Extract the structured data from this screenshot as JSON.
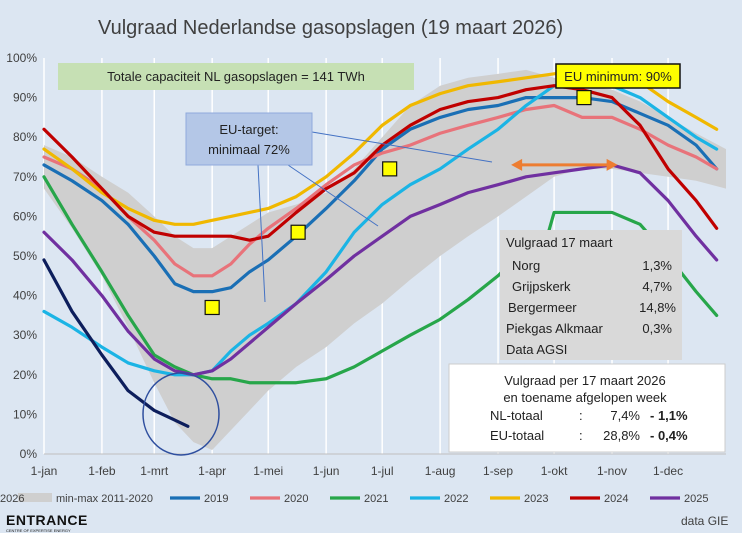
{
  "chart_data": {
    "type": "line",
    "title": "Vulgraad Nederlandse gasopslagen (19 maart 2026)",
    "xlabel": "",
    "ylabel": "",
    "x_ticks": [
      "1-jan",
      "1-feb",
      "1-mrt",
      "1-apr",
      "1-mei",
      "1-jun",
      "1-jul",
      "1-aug",
      "1-sep",
      "1-okt",
      "1-nov",
      "1-dec"
    ],
    "x_tick_days": [
      0,
      31,
      59,
      90,
      120,
      151,
      181,
      212,
      243,
      273,
      304,
      334
    ],
    "x_range_days": [
      0,
      365
    ],
    "y_ticks": [
      "0%",
      "10%",
      "20%",
      "30%",
      "40%",
      "50%",
      "60%",
      "70%",
      "80%",
      "90%",
      "100%"
    ],
    "ylim": [
      0,
      100
    ],
    "grid": "vertical",
    "band": {
      "name": "min-max 2011-2020",
      "color": "#cfcfcf",
      "x": [
        0,
        15,
        31,
        45,
        59,
        70,
        80,
        90,
        100,
        110,
        120,
        135,
        151,
        166,
        181,
        196,
        212,
        227,
        243,
        258,
        273,
        288,
        304,
        319,
        334,
        349,
        365
      ],
      "upper": [
        78,
        75,
        70,
        66,
        60,
        55,
        52,
        52,
        55,
        58,
        61,
        63,
        66,
        72,
        80,
        88,
        93,
        95,
        96,
        97,
        95,
        93,
        92,
        89,
        85,
        81,
        77
      ],
      "lower": [
        67,
        57,
        45,
        32,
        18,
        8,
        3,
        1,
        6,
        11,
        16,
        22,
        27,
        33,
        38,
        44,
        50,
        55,
        60,
        65,
        70,
        72,
        72,
        71,
        70,
        69,
        67
      ]
    },
    "series": [
      {
        "name": "2019",
        "color": "#1a6fb5",
        "x": [
          0,
          15,
          31,
          45,
          59,
          70,
          80,
          90,
          100,
          110,
          120,
          135,
          151,
          166,
          181,
          196,
          212,
          227,
          243,
          258,
          273,
          288,
          304,
          319,
          334,
          349,
          360
        ],
        "values": [
          73,
          69,
          64,
          58,
          50,
          43,
          41,
          41,
          42,
          46,
          49,
          55,
          62,
          69,
          77,
          82,
          85,
          87,
          88,
          90,
          90,
          90,
          89,
          86,
          83,
          78,
          72
        ]
      },
      {
        "name": "2020",
        "color": "#e8737a",
        "x": [
          0,
          15,
          31,
          45,
          59,
          70,
          80,
          90,
          100,
          110,
          120,
          135,
          151,
          166,
          181,
          196,
          212,
          227,
          243,
          258,
          273,
          288,
          304,
          319,
          334,
          349,
          360
        ],
        "values": [
          75,
          72,
          67,
          60,
          54,
          48,
          45,
          45,
          48,
          53,
          57,
          62,
          68,
          73,
          76,
          78,
          81,
          83,
          85,
          87,
          88,
          85,
          85,
          82,
          78,
          75,
          72
        ]
      },
      {
        "name": "2021",
        "color": "#27a64a",
        "x": [
          0,
          15,
          31,
          45,
          59,
          70,
          80,
          90,
          100,
          110,
          120,
          135,
          151,
          166,
          181,
          196,
          212,
          227,
          243,
          258,
          270,
          273,
          288,
          304,
          319,
          334,
          349,
          360
        ],
        "values": [
          70,
          58,
          46,
          35,
          25,
          22,
          20,
          19,
          19,
          18,
          18,
          18,
          19,
          22,
          26,
          30,
          34,
          39,
          45,
          52,
          56,
          61,
          61,
          61,
          58,
          50,
          41,
          35
        ]
      },
      {
        "name": "2022",
        "color": "#1bb4e5",
        "x": [
          0,
          15,
          31,
          45,
          59,
          70,
          80,
          90,
          100,
          110,
          120,
          135,
          151,
          166,
          181,
          196,
          212,
          227,
          243,
          258,
          273,
          288,
          304,
          319,
          334,
          349,
          360
        ],
        "values": [
          36,
          32,
          27,
          23,
          21,
          20,
          20,
          21,
          26,
          30,
          33,
          38,
          46,
          56,
          63,
          68,
          72,
          77,
          82,
          88,
          93,
          93,
          93,
          90,
          85,
          80,
          77
        ]
      },
      {
        "name": "2023",
        "color": "#f0b800",
        "x": [
          0,
          15,
          31,
          45,
          59,
          70,
          80,
          90,
          100,
          110,
          120,
          135,
          151,
          166,
          181,
          196,
          212,
          227,
          243,
          258,
          273,
          288,
          304,
          319,
          334,
          349,
          360
        ],
        "values": [
          77,
          72,
          66,
          62,
          59,
          58,
          58,
          59,
          60,
          61,
          62,
          65,
          70,
          76,
          83,
          88,
          91,
          93,
          94,
          95,
          96,
          97,
          96,
          94,
          89,
          85,
          82
        ]
      },
      {
        "name": "2024",
        "color": "#c00000",
        "x": [
          0,
          15,
          31,
          45,
          59,
          70,
          80,
          90,
          100,
          110,
          120,
          135,
          151,
          166,
          181,
          196,
          212,
          227,
          243,
          258,
          273,
          288,
          304,
          319,
          334,
          349,
          360
        ],
        "values": [
          82,
          75,
          67,
          60,
          56,
          55,
          55,
          55,
          55,
          54,
          55,
          61,
          67,
          71,
          78,
          83,
          87,
          89,
          90,
          92,
          93,
          92,
          90,
          83,
          72,
          64,
          57
        ]
      },
      {
        "name": "2025",
        "color": "#7030a0",
        "x": [
          0,
          15,
          31,
          45,
          59,
          70,
          80,
          90,
          100,
          110,
          120,
          135,
          151,
          166,
          181,
          196,
          212,
          227,
          243,
          258,
          273,
          288,
          304,
          319,
          334,
          349,
          360
        ],
        "values": [
          56,
          49,
          40,
          31,
          24,
          21,
          20,
          21,
          24,
          28,
          32,
          38,
          44,
          50,
          55,
          60,
          63,
          66,
          68,
          70,
          71,
          72,
          73,
          71,
          64,
          55,
          49
        ]
      },
      {
        "name": "2026",
        "color": "#0d1e5c",
        "x": [
          0,
          15,
          31,
          45,
          59,
          68,
          77
        ],
        "values": [
          49,
          36,
          25,
          16,
          11,
          9,
          7
        ]
      }
    ],
    "markers": {
      "color": "#ffff00",
      "label": "EU-target: minimaal 72%",
      "points": [
        {
          "x": 90,
          "y": 37
        },
        {
          "x": 136,
          "y": 56
        },
        {
          "x": 185,
          "y": 72
        }
      ]
    },
    "eu_minimum": {
      "label": "EU minimum: 90%",
      "x": 289,
      "y": 90
    },
    "arrow": {
      "color": "#ed7d31",
      "x0": 250,
      "x1": 307,
      "y": 73
    },
    "capacity_note": "Totale capaciteit NL gasopslagen = 141 TWh",
    "table1": {
      "title": "Vulgraad 17 maart",
      "rows": [
        [
          "Norg",
          "1,3%"
        ],
        [
          "Grijpskerk",
          "4,7%"
        ],
        [
          "Bergermeer",
          "14,8%"
        ],
        [
          "Piekgas Alkmaar",
          "0,3%"
        ]
      ],
      "source": "Data AGSI"
    },
    "table2": {
      "title_line1": "Vulgraad per 17 maart 2026",
      "title_line2": "en toename afgelopen week",
      "rows": [
        {
          "label": "NL-totaal",
          "sep": ":",
          "value": "7,4%",
          "change": "- 1,1%"
        },
        {
          "label": "EU-totaal",
          "sep": ":",
          "value": "28,8%",
          "change": "- 0,4%"
        }
      ],
      "change_color": "#ff0000"
    },
    "legend": {
      "placement": "bottom"
    }
  },
  "footer": {
    "logo": "ENTRANCE",
    "logo_sub": "CENTRE OF EXPERTISE ENERGY",
    "source": "data GIE"
  }
}
